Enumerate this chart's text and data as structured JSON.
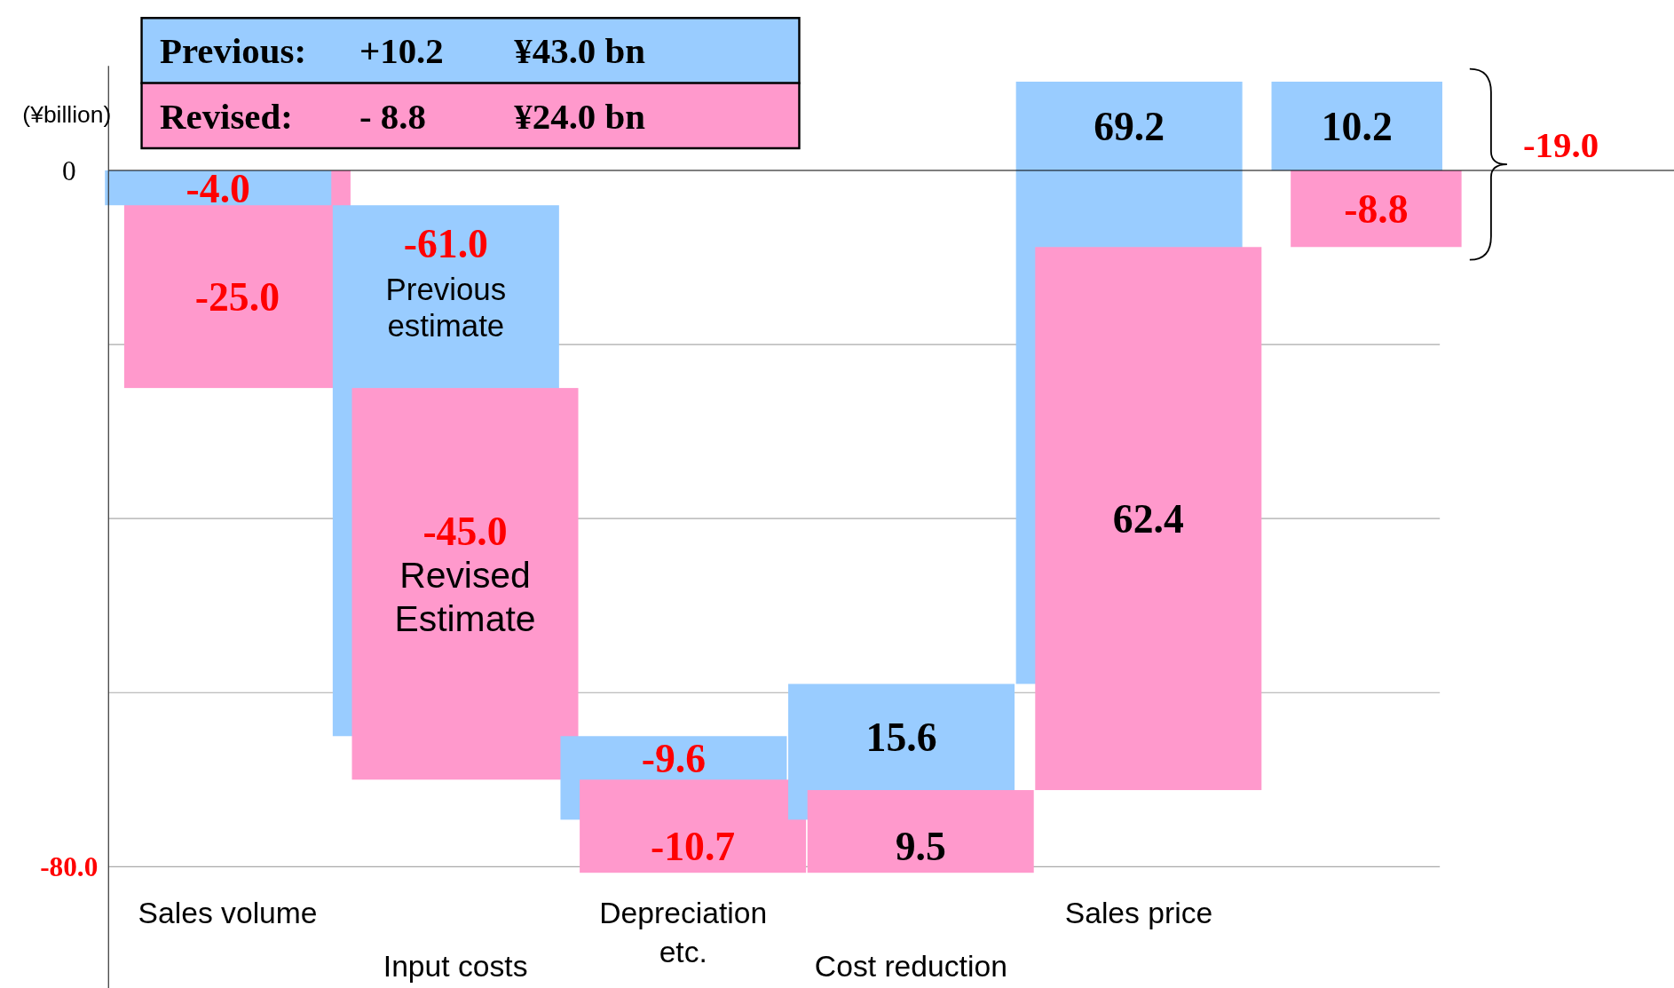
{
  "chart_data": {
    "type": "bar",
    "ylabel": "(¥billion)",
    "categories": [
      "Sales volume",
      "Input costs",
      "Depreciation etc.",
      "Cost reduction",
      "Sales price",
      null
    ],
    "series": [
      {
        "name": "Previous:",
        "color": "#99ccff",
        "values": [
          -4.0,
          -61.0,
          -9.6,
          15.6,
          69.2,
          10.2
        ],
        "base": [
          0,
          -4.0,
          -65.0,
          -74.6,
          -59.0,
          0
        ],
        "value_labels": [
          "-4.0",
          "-61.0",
          "-9.6",
          "15.6",
          "69.2",
          "10.2"
        ]
      },
      {
        "name": "Revised:",
        "color": "#ff99cc",
        "values": [
          -25.0,
          -45.0,
          -10.7,
          9.5,
          62.4,
          -8.8
        ],
        "base": [
          0,
          -25.0,
          -70.0,
          -80.7,
          -71.2,
          0
        ],
        "value_labels": [
          "-25.0",
          "-45.0",
          "-10.7",
          "9.5",
          "62.4",
          "-8.8"
        ]
      }
    ],
    "ylim": [
      -94,
      12
    ],
    "yticks": [
      {
        "value": 0,
        "label": "0"
      },
      {
        "value": -20,
        "label": null
      },
      {
        "value": -40,
        "label": null
      },
      {
        "value": -60,
        "label": null
      },
      {
        "value": -80,
        "label": "-80.0"
      }
    ],
    "grid": "y",
    "legend": "top left",
    "ref_lines": [
      {
        "axis": "y",
        "value": 0,
        "color": "#000000"
      }
    ],
    "annotations": [
      "+10.2",
      "¥43.0 bn",
      "- 8.8",
      "¥24.0 bn",
      "-19.0",
      "Previous estimate",
      "Revised Estimate"
    ]
  }
}
